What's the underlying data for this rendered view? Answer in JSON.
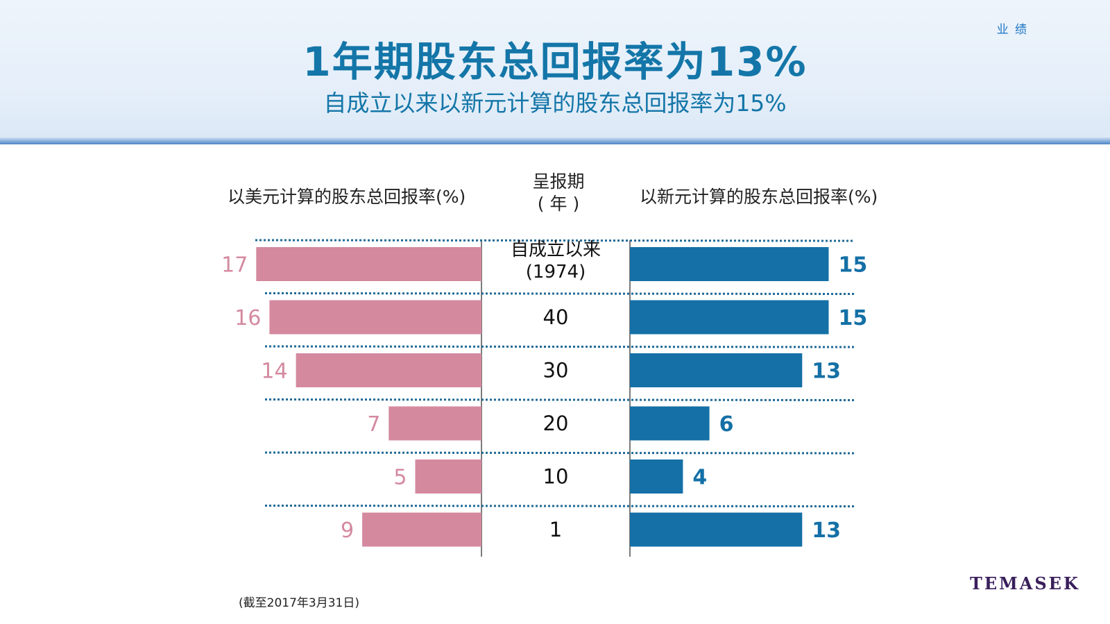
{
  "header": {
    "section_tag": "业 绩",
    "title": "1年期股东总回报率为13%",
    "subtitle": "自成立以来以新元计算的股东总回报率为15%"
  },
  "columns": {
    "left_header": "以美元计算的股东总回报率(%)",
    "mid_header_line1": "呈报期",
    "mid_header_line2": "( 年 )",
    "right_header": "以新元计算的股东总回报率(%)"
  },
  "chart_data": {
    "type": "bar",
    "orientation": "horizontal-butterfly",
    "categories": [
      [
        "自成立以来",
        "(1974)"
      ],
      [
        "40"
      ],
      [
        "30"
      ],
      [
        "20"
      ],
      [
        "10"
      ],
      [
        "1"
      ]
    ],
    "series": [
      {
        "name": "以美元计算的股东总回报率(%)",
        "values": [
          17,
          16,
          14,
          7,
          5,
          9
        ],
        "color": "#d4899f"
      },
      {
        "name": "以新元计算的股东总回报率(%)",
        "values": [
          15,
          15,
          13,
          6,
          4,
          13
        ],
        "color": "#1470a6"
      }
    ],
    "xlim": [
      0,
      17
    ]
  },
  "footnote": "(截至2017年3月31日)",
  "logo": "TEMASEK",
  "colors": {
    "title": "#1476a8",
    "left_bar": "#d4899f",
    "right_bar": "#1470a6",
    "dotted_rule": "#1f6a96"
  }
}
